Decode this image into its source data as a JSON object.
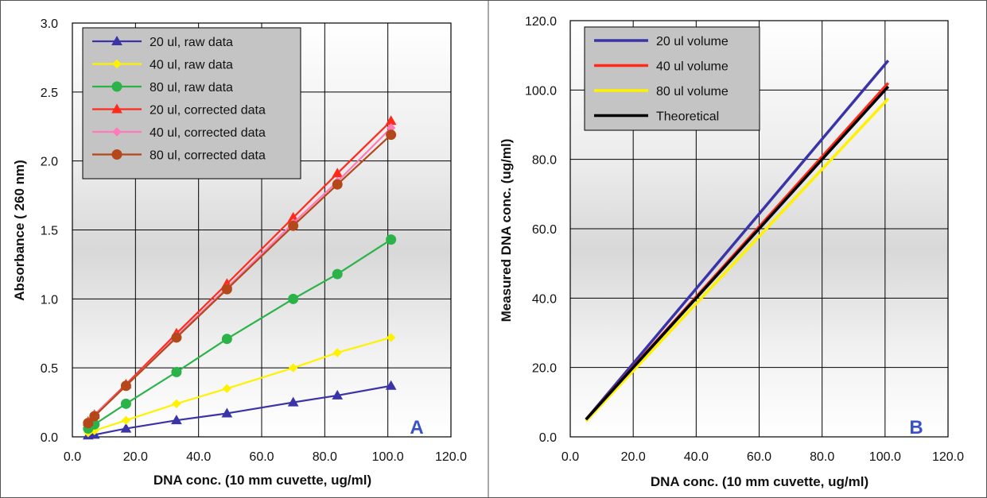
{
  "colors": {
    "blue": "#3b34a8",
    "yellow": "#fff200",
    "green": "#2bb34a",
    "red": "#ff2a1a",
    "pink": "#ff7ab8",
    "brown": "#b5481a",
    "black": "#000000",
    "letter": "#3a52c8",
    "legend_bg": "#c4c4c4"
  },
  "chart_data": [
    {
      "type": "line",
      "panel": "A",
      "xlabel": "DNA conc. (10 mm cuvette, ug/ml)",
      "ylabel": "Absorbance  ( 260 nm)",
      "xlim": [
        0,
        120
      ],
      "ylim": [
        0,
        3.0
      ],
      "x_ticks": [
        "0.0",
        "20.0",
        "40.0",
        "60.0",
        "80.0",
        "100.0",
        "120.0"
      ],
      "y_ticks": [
        "0.0",
        "0.5",
        "1.0",
        "1.5",
        "2.0",
        "2.5",
        "3.0"
      ],
      "grid": true,
      "legend_position": "top-left",
      "series": [
        {
          "name": "20 ul, raw data",
          "color": "blue",
          "marker": "triangle",
          "x": [
            5,
            7,
            17,
            33,
            49,
            70,
            84,
            101
          ],
          "y": [
            0.01,
            0.015,
            0.06,
            0.12,
            0.17,
            0.25,
            0.3,
            0.37
          ]
        },
        {
          "name": "40 ul, raw data",
          "color": "yellow",
          "marker": "diamond",
          "x": [
            5,
            7,
            17,
            33,
            49,
            70,
            84,
            101
          ],
          "y": [
            0.03,
            0.045,
            0.12,
            0.24,
            0.35,
            0.5,
            0.61,
            0.72
          ]
        },
        {
          "name": "80 ul, raw data",
          "color": "green",
          "marker": "circle",
          "x": [
            5,
            7,
            17,
            33,
            49,
            70,
            84,
            101
          ],
          "y": [
            0.06,
            0.09,
            0.24,
            0.47,
            0.71,
            1.0,
            1.18,
            1.43
          ]
        },
        {
          "name": "20 ul, corrected data",
          "color": "red",
          "marker": "triangle",
          "x": [
            5,
            7,
            17,
            33,
            49,
            70,
            84,
            101
          ],
          "y": [
            0.11,
            0.16,
            0.38,
            0.75,
            1.11,
            1.59,
            1.91,
            2.29
          ]
        },
        {
          "name": "40 ul, corrected data",
          "color": "pink",
          "marker": "diamond",
          "x": [
            5,
            7,
            17,
            33,
            49,
            70,
            84,
            101
          ],
          "y": [
            0.11,
            0.16,
            0.37,
            0.73,
            1.08,
            1.55,
            1.85,
            2.24
          ]
        },
        {
          "name": "80 ul, corrected data",
          "color": "brown",
          "marker": "circle",
          "x": [
            5,
            7,
            17,
            33,
            49,
            70,
            84,
            101
          ],
          "y": [
            0.1,
            0.15,
            0.37,
            0.72,
            1.07,
            1.53,
            1.83,
            2.19
          ]
        }
      ],
      "annotation": "A"
    },
    {
      "type": "line",
      "panel": "B",
      "xlabel": "DNA conc. (10 mm cuvette, ug/ml)",
      "ylabel": "Measured DNA conc.  (ug/ml)",
      "xlim": [
        0,
        120
      ],
      "ylim": [
        0,
        120
      ],
      "x_ticks": [
        "0.0",
        "20.0",
        "40.0",
        "60.0",
        "80.0",
        "100.0",
        "120.0"
      ],
      "y_ticks": [
        "0.0",
        "20.0",
        "40.0",
        "60.0",
        "80.0",
        "100.0",
        "120.0"
      ],
      "grid": true,
      "legend_position": "top-left",
      "series": [
        {
          "name": "20 ul volume",
          "color": "blue",
          "x": [
            5,
            101
          ],
          "y": [
            5.0,
            108.5
          ]
        },
        {
          "name": "40 ul volume",
          "color": "red",
          "x": [
            5,
            101
          ],
          "y": [
            5.0,
            102.0
          ]
        },
        {
          "name": "80 ul volume",
          "color": "yellow",
          "x": [
            5,
            101
          ],
          "y": [
            4.5,
            97.5
          ]
        },
        {
          "name": "Theoretical",
          "color": "black",
          "x": [
            5,
            101
          ],
          "y": [
            5.0,
            101.0
          ]
        }
      ],
      "annotation": "B"
    }
  ]
}
